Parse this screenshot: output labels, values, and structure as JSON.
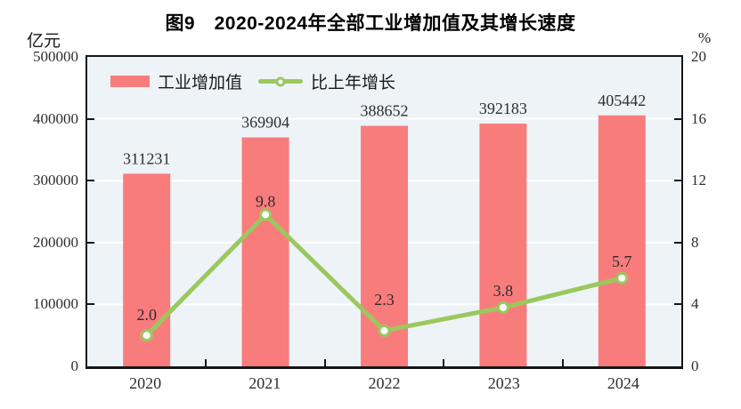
{
  "figure": {
    "title": "图9　2020-2024年全部工业增加值及其增长速度",
    "left_unit": "亿元",
    "right_unit": "%"
  },
  "legend": {
    "bar_label": "工业增加值",
    "line_label": "比上年增长"
  },
  "colors": {
    "bar": "#F97C7C",
    "line": "#9AC85E",
    "plot_bg": "#EEF3F7",
    "gridline": "#FFFFFF",
    "axis": "#151515"
  },
  "chart_data": {
    "type": "bar+line",
    "title": "图9　2020-2024年全部工业增加值及其增长速度",
    "categories": [
      "2020",
      "2021",
      "2022",
      "2023",
      "2024"
    ],
    "series": [
      {
        "name": "工业增加值",
        "type": "bar",
        "axis": "left",
        "unit": "亿元",
        "color": "#F97C7C",
        "values": [
          311231,
          369904,
          388652,
          392183,
          405442
        ]
      },
      {
        "name": "比上年增长",
        "type": "line",
        "axis": "right",
        "unit": "%",
        "color": "#9AC85E",
        "values": [
          2.0,
          9.8,
          2.3,
          3.8,
          5.7
        ]
      }
    ],
    "left_axis": {
      "label": "亿元",
      "min": 0,
      "max": 500000,
      "step": 100000,
      "ticks": [
        "0",
        "100000",
        "200000",
        "300000",
        "400000",
        "500000"
      ]
    },
    "right_axis": {
      "label": "%",
      "min": 0,
      "max": 20,
      "step": 4,
      "ticks": [
        "0",
        "4",
        "8",
        "12",
        "16",
        "20"
      ]
    },
    "grid": true,
    "legend_position": "top-left-inside",
    "label_dy": [
      23,
      15,
      35,
      19,
      19
    ]
  }
}
